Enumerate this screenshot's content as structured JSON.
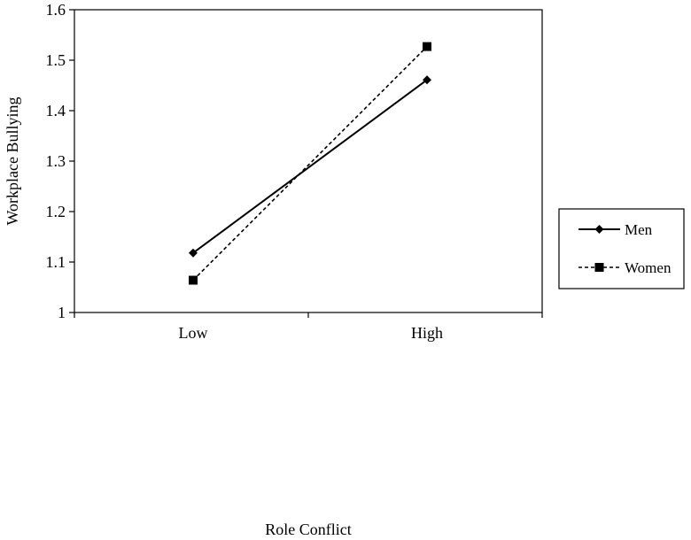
{
  "chart_data": {
    "type": "line",
    "categories": [
      "Low",
      "High"
    ],
    "series": [
      {
        "name": "Men",
        "values": [
          1.118,
          1.461
        ],
        "marker": "diamond",
        "line_style": "solid"
      },
      {
        "name": "Women",
        "values": [
          1.064,
          1.527
        ],
        "marker": "square",
        "line_style": "dashed"
      }
    ],
    "title": "",
    "xlabel": "Role Conflict",
    "ylabel": "Workplace Bullying",
    "ylim": [
      1,
      1.6
    ],
    "yticks": [
      "1",
      "1.1",
      "1.2",
      "1.3",
      "1.4",
      "1.5",
      "1.6"
    ],
    "grid": false,
    "legend_position": "right",
    "colors": {
      "line": "#000000",
      "background": "#ffffff"
    }
  }
}
